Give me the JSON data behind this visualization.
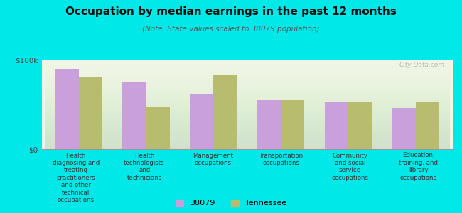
{
  "title": "Occupation by median earnings in the past 12 months",
  "subtitle": "(Note: State values scaled to 38079 population)",
  "categories": [
    "Health\ndiagnosing and\ntreating\npractitioners\nand other\ntechnical\noccupations",
    "Health\ntechnologists\nand\ntechnicians",
    "Management\noccupations",
    "Transportation\noccupations",
    "Community\nand social\nservice\noccupations",
    "Education,\ntraining, and\nlibrary\noccupations"
  ],
  "values_38079": [
    90000,
    75000,
    62000,
    55000,
    52000,
    46000
  ],
  "values_tennessee": [
    80000,
    47000,
    83000,
    55000,
    52000,
    52000
  ],
  "color_38079": "#c9a0dc",
  "color_tennessee": "#b8bc6e",
  "background_color": "#00e8e8",
  "plot_bg_color": "#f0f5e4",
  "ylim": [
    0,
    100000
  ],
  "ytick_labels": [
    "$0",
    "$100k"
  ],
  "legend_label_38079": "38079",
  "legend_label_tennessee": "Tennessee",
  "watermark": "City-Data.com"
}
